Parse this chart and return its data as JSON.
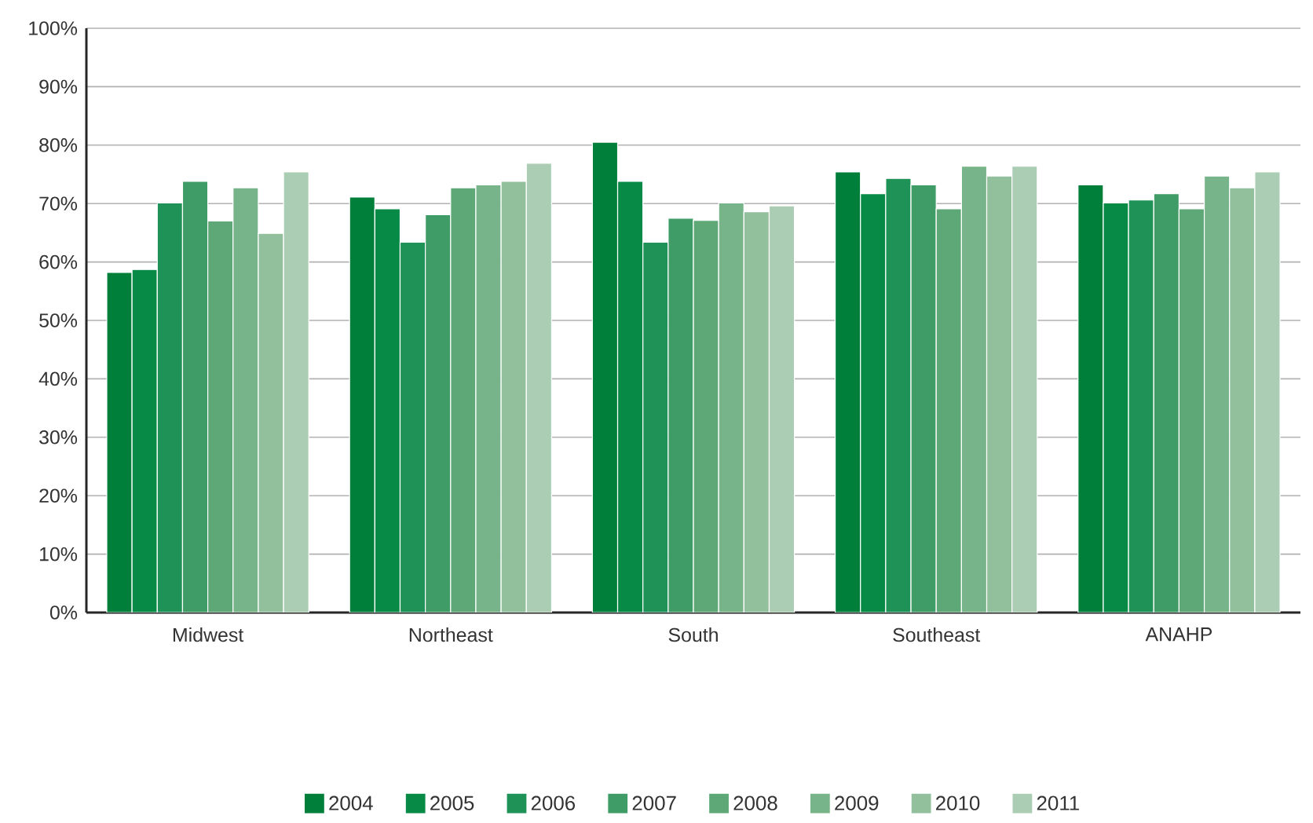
{
  "chart_data": {
    "type": "bar",
    "categories": [
      "Midwest",
      "Northeast",
      "South",
      "Southeast",
      "ANAHP"
    ],
    "series": [
      {
        "name": "2004",
        "color": "#007f3b",
        "values": [
          58.2,
          71.1,
          80.5,
          75.4,
          73.2
        ]
      },
      {
        "name": "2005",
        "color": "#088a47",
        "values": [
          58.7,
          69.1,
          73.8,
          71.7,
          70.1
        ]
      },
      {
        "name": "2006",
        "color": "#1e9257",
        "values": [
          70.1,
          63.4,
          63.4,
          74.3,
          70.6
        ]
      },
      {
        "name": "2007",
        "color": "#3f9c66",
        "values": [
          73.8,
          68.1,
          67.5,
          73.2,
          71.7
        ]
      },
      {
        "name": "2008",
        "color": "#5ea877",
        "values": [
          67.0,
          72.7,
          67.1,
          69.1,
          69.1
        ]
      },
      {
        "name": "2009",
        "color": "#78b489",
        "values": [
          72.7,
          73.2,
          70.1,
          76.4,
          74.7
        ]
      },
      {
        "name": "2010",
        "color": "#92bf9c",
        "values": [
          64.9,
          73.8,
          68.6,
          74.7,
          72.7
        ]
      },
      {
        "name": "2011",
        "color": "#aacdb3",
        "values": [
          75.4,
          76.9,
          69.6,
          76.4,
          75.4
        ]
      }
    ],
    "ylim": [
      0,
      100
    ],
    "yticks": [
      {
        "value": 0,
        "label": "0%"
      },
      {
        "value": 10,
        "label": "10%"
      },
      {
        "value": 20,
        "label": "20%"
      },
      {
        "value": 30,
        "label": "30%"
      },
      {
        "value": 40,
        "label": "40%"
      },
      {
        "value": 50,
        "label": "50%"
      },
      {
        "value": 60,
        "label": "60%"
      },
      {
        "value": 70,
        "label": "70%"
      },
      {
        "value": 80,
        "label": "80%"
      },
      {
        "value": 90,
        "label": "90%"
      },
      {
        "value": 100,
        "label": "100%"
      }
    ],
    "grid": "y",
    "legend": "bottom"
  }
}
